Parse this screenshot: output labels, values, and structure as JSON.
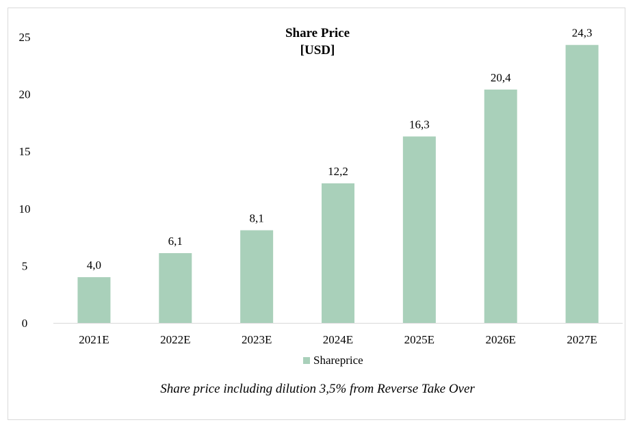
{
  "chart_data": {
    "type": "bar",
    "title": "Share Price",
    "subtitle": "[USD]",
    "categories": [
      "2021E",
      "2022E",
      "2023E",
      "2024E",
      "2025E",
      "2026E",
      "2027E"
    ],
    "series": [
      {
        "name": "Shareprice",
        "values": [
          4.0,
          6.1,
          8.1,
          12.2,
          16.3,
          20.4,
          24.3
        ],
        "labels": [
          "4,0",
          "6,1",
          "8,1",
          "12,2",
          "16,3",
          "20,4",
          "24,3"
        ],
        "color": "#a9d0ba"
      }
    ],
    "ylim": [
      0,
      25
    ],
    "yticks": [
      0,
      5,
      10,
      15,
      20,
      25
    ],
    "grid": false,
    "legend": "bottom",
    "xlabel": "",
    "ylabel": "",
    "annotation": "Share price including dilution 3,5% from Reverse Take Over"
  }
}
